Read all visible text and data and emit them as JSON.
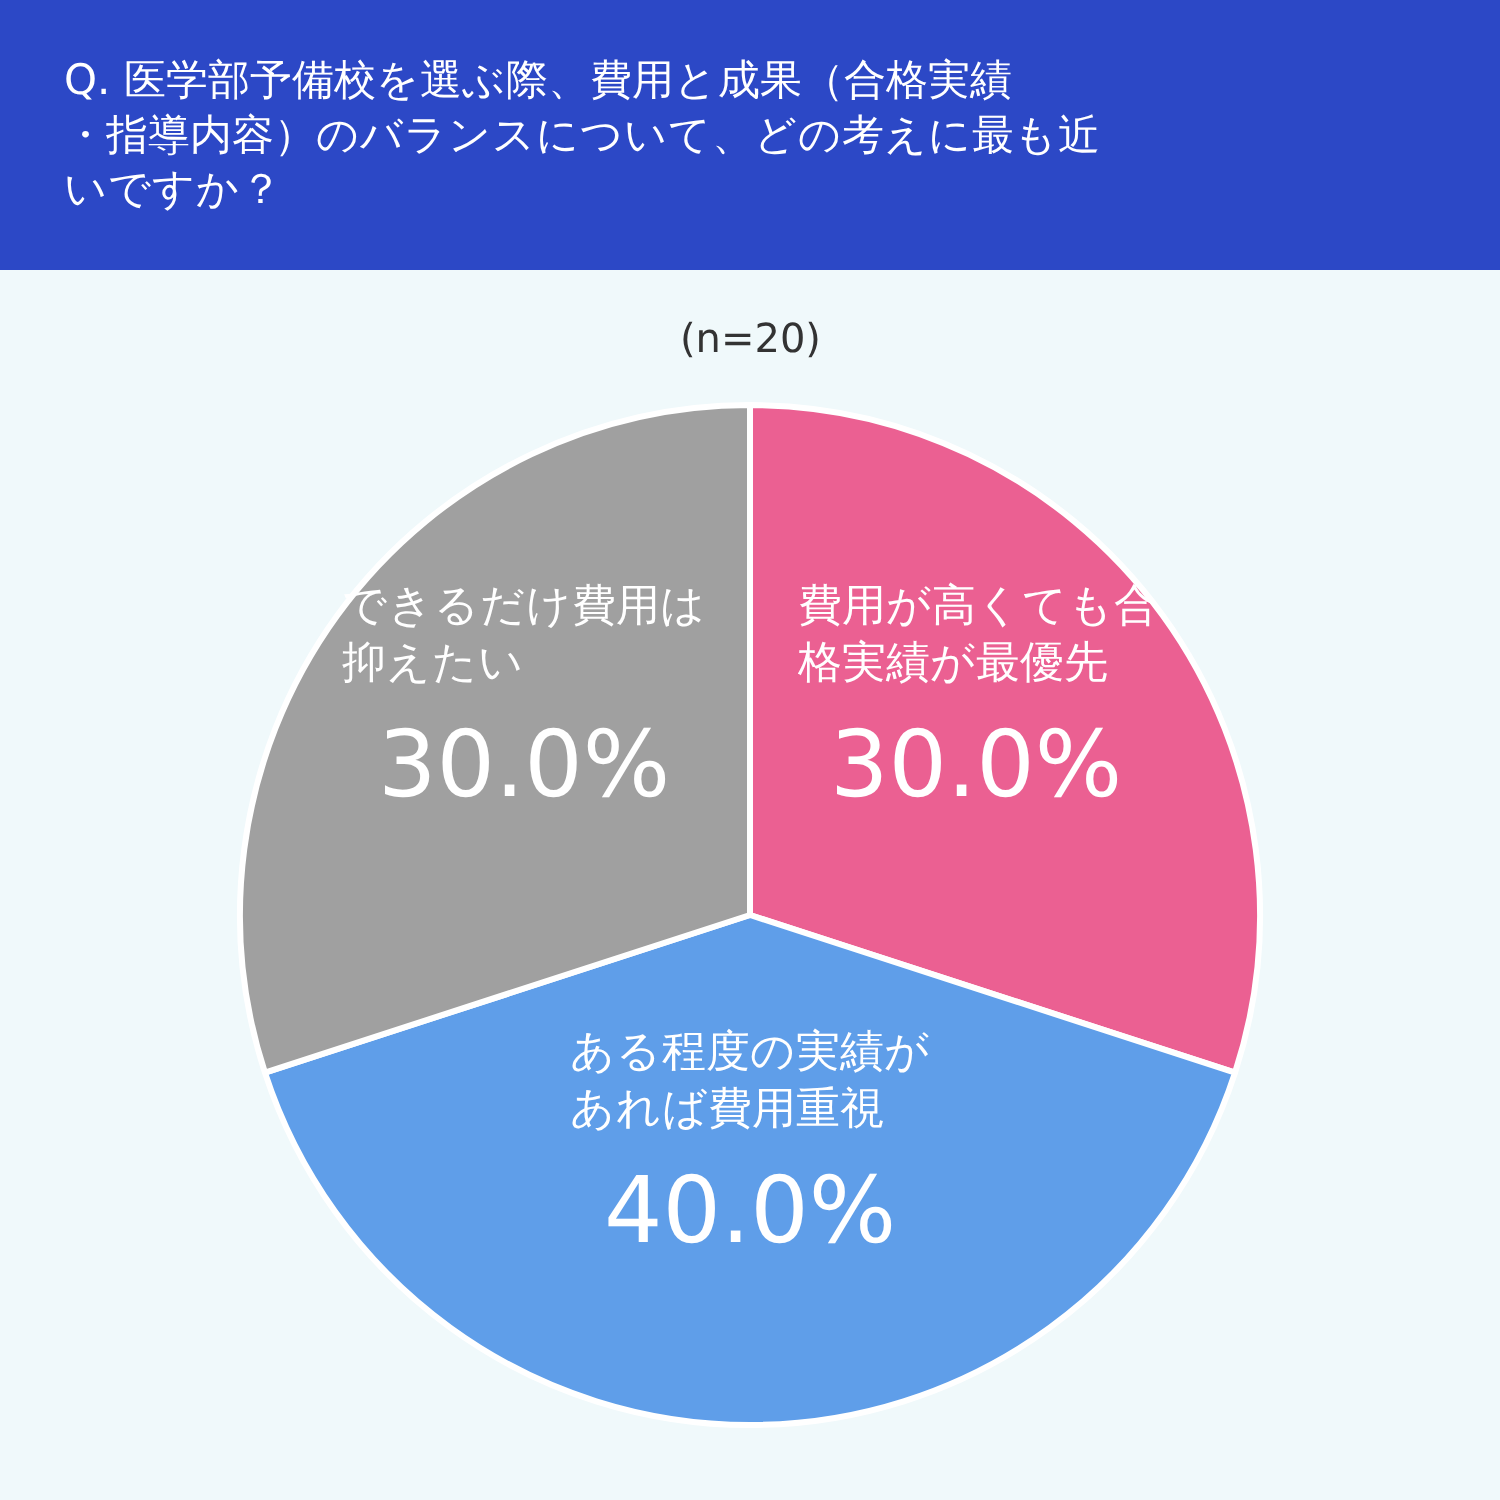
{
  "chart_data": {
    "type": "pie",
    "title": "Q. 医学部予備校を選ぶ際、費用と成果（合格実績・指導内容）のバランスについて、どの考えに最も近いですか？",
    "subtitle": "(n=20)",
    "categories": [
      "費用が高くても合格実績が最優先",
      "ある程度の実績があれば費用重視",
      "できるだけ費用は抑えたい"
    ],
    "values": [
      30.0,
      40.0,
      30.0
    ],
    "value_labels": [
      "30.0%",
      "40.0%",
      "30.0%"
    ],
    "colors": [
      "#eb6092",
      "#5f9ee9",
      "#a0a0a0"
    ],
    "legend": false
  }
}
